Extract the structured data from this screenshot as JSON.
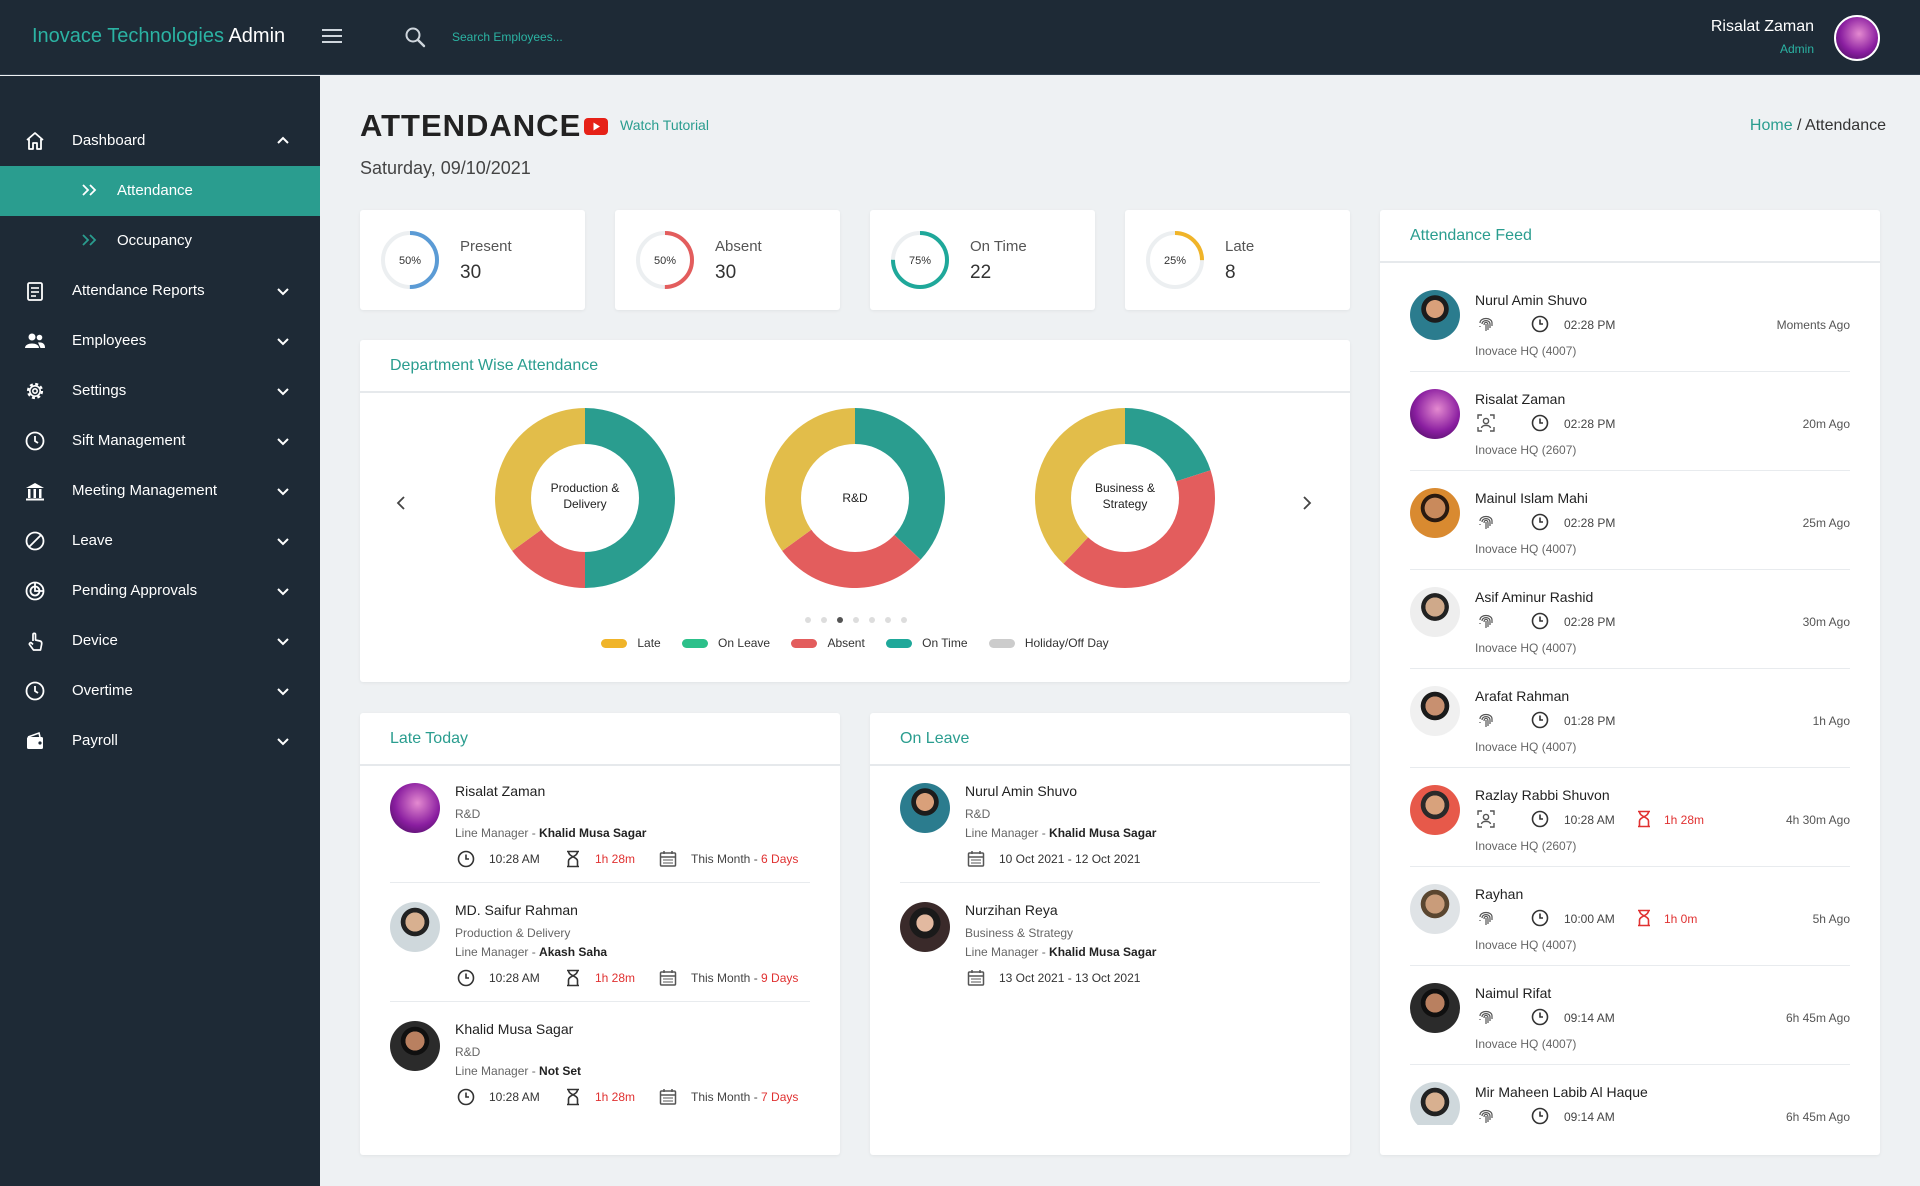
{
  "header": {
    "brand_company": "Inovace Technologies",
    "brand_suffix": " Admin",
    "search_placeholder": "Search Employees...",
    "user_name": "Risalat Zaman",
    "user_role": "Admin"
  },
  "sidebar": {
    "items": [
      {
        "label": "Dashboard",
        "icon": "home-icon"
      },
      {
        "label": "Attendance",
        "icon": "double-chevron-icon"
      },
      {
        "label": "Occupancy",
        "icon": "double-chevron-icon"
      },
      {
        "label": "Attendance Reports",
        "icon": "report-icon"
      },
      {
        "label": "Employees",
        "icon": "users-icon"
      },
      {
        "label": "Settings",
        "icon": "gear-icon"
      },
      {
        "label": "Sift Management",
        "icon": "clock-icon"
      },
      {
        "label": "Meeting Management",
        "icon": "building-icon"
      },
      {
        "label": "Leave",
        "icon": "block-icon"
      },
      {
        "label": "Pending Approvals",
        "icon": "pending-icon"
      },
      {
        "label": "Device",
        "icon": "touch-icon"
      },
      {
        "label": "Overtime",
        "icon": "clock-icon"
      },
      {
        "label": "Payroll",
        "icon": "wallet-icon"
      }
    ]
  },
  "page": {
    "title": "ATTENDANCE",
    "tutorial": "Watch Tutorial",
    "date": "Saturday, 09/10/2021",
    "crumb_home": "Home",
    "crumb_sep": " / ",
    "crumb_current": "Attendance"
  },
  "stats": [
    {
      "label": "Present",
      "value": "30",
      "pct": "50%",
      "fraction": 0.5,
      "color": "#5b9bd5"
    },
    {
      "label": "Absent",
      "value": "30",
      "pct": "50%",
      "fraction": 0.5,
      "color": "#e35d5d"
    },
    {
      "label": "On Time",
      "value": "22",
      "pct": "75%",
      "fraction": 0.75,
      "color": "#1fa89a"
    },
    {
      "label": "Late",
      "value": "8",
      "pct": "25%",
      "fraction": 0.25,
      "color": "#f0b429"
    }
  ],
  "dept": {
    "title": "Department Wise Attendance",
    "charts": [
      {
        "label_1": "Production &",
        "label_2": "Delivery",
        "segments": [
          {
            "name": "On Time",
            "value": 50
          },
          {
            "name": "Absent",
            "value": 15
          },
          {
            "name": "Late",
            "value": 35
          }
        ]
      },
      {
        "label_1": "R&D",
        "label_2": "",
        "segments": [
          {
            "name": "On Time",
            "value": 37
          },
          {
            "name": "Absent",
            "value": 28
          },
          {
            "name": "Late",
            "value": 35
          }
        ]
      },
      {
        "label_1": "Business &",
        "label_2": "Strategy",
        "segments": [
          {
            "name": "On Time",
            "value": 20
          },
          {
            "name": "Absent",
            "value": 42
          },
          {
            "name": "Late",
            "value": 38
          }
        ]
      }
    ],
    "legend": [
      {
        "label": "Late",
        "color": "#f0b429"
      },
      {
        "label": "On Leave",
        "color": "#2cc08a"
      },
      {
        "label": "Absent",
        "color": "#e35d5d"
      },
      {
        "label": "On Time",
        "color": "#1fa89a"
      },
      {
        "label": "Holiday/Off Day",
        "color": "#cccccc"
      }
    ],
    "segment_colors": {
      "On Time": "#2a9d8f",
      "Absent": "#e35d5d",
      "Late": "#e2bd4a"
    }
  },
  "late_today": {
    "title": "Late Today",
    "line_manager_prefix": "Line Manager - ",
    "people": [
      {
        "name": "Risalat Zaman",
        "dept": "R&D",
        "manager": "Khalid Musa Sagar",
        "time": "10:28 AM",
        "late": "1h 28m",
        "month": "This Month - ",
        "days": "6 Days"
      },
      {
        "name": "MD. Saifur Rahman",
        "dept": "Production & Delivery",
        "manager": "Akash Saha",
        "time": "10:28 AM",
        "late": "1h 28m",
        "month": "This Month - ",
        "days": "9 Days"
      },
      {
        "name": "Khalid Musa Sagar",
        "dept": "R&D",
        "manager": "Not Set",
        "time": "10:28 AM",
        "late": "1h 28m",
        "month": "This Month - ",
        "days": "7 Days"
      }
    ]
  },
  "on_leave": {
    "title": "On Leave",
    "line_manager_prefix": "Line Manager - ",
    "people": [
      {
        "name": "Nurul Amin Shuvo",
        "dept": "R&D",
        "manager": "Khalid Musa Sagar",
        "range": "10 Oct 2021 - 12 Oct 2021"
      },
      {
        "name": "Nurzihan Reya",
        "dept": "Business & Strategy",
        "manager": "Khalid Musa Sagar",
        "range": "13 Oct 2021 - 13 Oct 2021"
      }
    ]
  },
  "feed": {
    "title": "Attendance Feed",
    "items": [
      {
        "name": "Nurul Amin Shuvo",
        "method": "fingerprint-icon",
        "time": "02:28 PM",
        "late": "",
        "loc": "Inovace HQ (4007)",
        "ago": "Moments Ago"
      },
      {
        "name": "Risalat Zaman",
        "method": "face-scan-icon",
        "time": "02:28 PM",
        "late": "",
        "loc": "Inovace HQ (2607)",
        "ago": "20m Ago"
      },
      {
        "name": "Mainul Islam Mahi",
        "method": "fingerprint-icon",
        "time": "02:28 PM",
        "late": "",
        "loc": "Inovace HQ (4007)",
        "ago": "25m Ago"
      },
      {
        "name": "Asif Aminur Rashid",
        "method": "fingerprint-icon",
        "time": "02:28 PM",
        "late": "",
        "loc": "Inovace HQ (4007)",
        "ago": "30m Ago"
      },
      {
        "name": "Arafat Rahman",
        "method": "fingerprint-icon",
        "time": "01:28 PM",
        "late": "",
        "loc": "Inovace HQ (4007)",
        "ago": "1h Ago"
      },
      {
        "name": "Razlay Rabbi Shuvon",
        "method": "face-scan-icon",
        "time": "10:28 AM",
        "late": "1h 28m",
        "loc": "Inovace HQ (2607)",
        "ago": "4h 30m Ago"
      },
      {
        "name": "Rayhan",
        "method": "fingerprint-icon",
        "time": "10:00 AM",
        "late": "1h 0m",
        "loc": "Inovace HQ (4007)",
        "ago": "5h Ago"
      },
      {
        "name": "Naimul Rifat",
        "method": "fingerprint-icon",
        "time": "09:14 AM",
        "late": "",
        "loc": "Inovace HQ (4007)",
        "ago": "6h 45m Ago"
      },
      {
        "name": "Mir Maheen Labib Al Haque",
        "method": "fingerprint-icon",
        "time": "09:14 AM",
        "late": "",
        "loc": "",
        "ago": "6h 45m Ago"
      }
    ]
  }
}
